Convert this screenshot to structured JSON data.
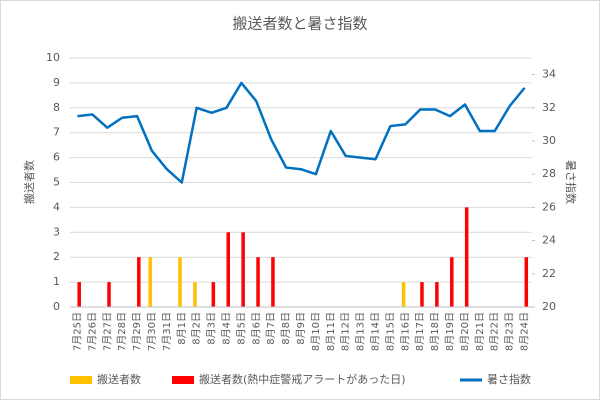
{
  "chart_data": {
    "type": "bar_line",
    "title": "搬送者数と暑さ指数",
    "y_label": "搬送者数",
    "y2_label": "暑さ指数",
    "categories": [
      "7月25日",
      "7月26日",
      "7月27日",
      "7月28日",
      "7月29日",
      "7月30日",
      "7月31日",
      "8月1日",
      "8月2日",
      "8月3日",
      "8月4日",
      "8月5日",
      "8月6日",
      "8月7日",
      "8月8日",
      "8月9日",
      "8月10日",
      "8月11日",
      "8月12日",
      "8月13日",
      "8月14日",
      "8月15日",
      "8月16日",
      "8月17日",
      "8月18日",
      "8月19日",
      "8月20日",
      "8月21日",
      "8月22日",
      "8月23日",
      "8月24日"
    ],
    "series": [
      {
        "name": "搬送者数",
        "color": "#ffc000",
        "type": "bar",
        "values": [
          0,
          0,
          0,
          0,
          0,
          2,
          0,
          2,
          1,
          0,
          0,
          0,
          0,
          0,
          0,
          0,
          0,
          0,
          0,
          0,
          0,
          0,
          1,
          0,
          0,
          0,
          0,
          0,
          0,
          0,
          0
        ]
      },
      {
        "name": "搬送者数(熱中症警戒アラートがあった日)",
        "color": "#ff0000",
        "type": "bar",
        "values": [
          1,
          0,
          1,
          0,
          2,
          0,
          0,
          0,
          0,
          1,
          3,
          3,
          2,
          2,
          0,
          0,
          0,
          0,
          0,
          0,
          0,
          0,
          0,
          1,
          1,
          2,
          4,
          0,
          0,
          0,
          2
        ]
      },
      {
        "name": "暑さ指数",
        "color": "#0070c0",
        "type": "line",
        "axis": "y2",
        "values": [
          31.5,
          31.6,
          30.8,
          31.4,
          31.5,
          29.4,
          28.3,
          27.5,
          32.0,
          31.7,
          32.0,
          33.5,
          32.4,
          30.1,
          28.4,
          28.3,
          28.0,
          30.6,
          29.1,
          29.0,
          28.9,
          30.9,
          31.0,
          31.9,
          31.9,
          31.5,
          32.2,
          30.6,
          30.6,
          32.1,
          33.2
        ]
      }
    ],
    "ylim": [
      0,
      10
    ],
    "yticks": [
      0,
      1,
      2,
      3,
      4,
      5,
      6,
      7,
      8,
      9,
      10
    ],
    "y2lim": [
      20,
      35
    ],
    "y2ticks": [
      20,
      22,
      24,
      26,
      28,
      30,
      32,
      34
    ],
    "legend": "bottom"
  }
}
